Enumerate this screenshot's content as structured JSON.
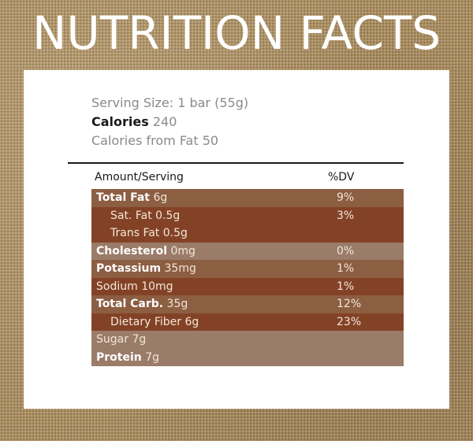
{
  "header": {
    "title": "NUTRITION FACTS"
  },
  "label": {
    "serving_size": "Serving Size: 1 bar (55g)",
    "calories_label": "Calories",
    "calories_value": "240",
    "calories_from_fat": "Calories from Fat 50",
    "amount_per_serving": "Amount/Serving",
    "dv_header": "%DV"
  },
  "nutrients": [
    {
      "label": "Total Fat",
      "amount": "6g",
      "dv": "9%",
      "bold": true,
      "indent": 0,
      "shade": "mid"
    },
    {
      "label": "Sat. Fat",
      "amount": "0.5g",
      "dv": "3%",
      "bold": false,
      "indent": 1,
      "shade": "dark"
    },
    {
      "label": "Trans Fat",
      "amount": "0.5g",
      "dv": "",
      "bold": false,
      "indent": 1,
      "shade": "dark"
    },
    {
      "label": "Cholesterol",
      "amount": "0mg",
      "dv": "0%",
      "bold": true,
      "indent": 0,
      "shade": "light"
    },
    {
      "label": "Potassium",
      "amount": "35mg",
      "dv": "1%",
      "bold": true,
      "indent": 0,
      "shade": "mid"
    },
    {
      "label": "Sodium",
      "amount": "10mg",
      "dv": "1%",
      "bold": false,
      "indent": 0,
      "shade": "dark"
    },
    {
      "label": "Total Carb.",
      "amount": "35g",
      "dv": "12%",
      "bold": true,
      "indent": 0,
      "shade": "mid"
    },
    {
      "label": "Dietary Fiber",
      "amount": "6g",
      "dv": "23%",
      "bold": false,
      "indent": 1,
      "shade": "dark"
    },
    {
      "label": "Sugar",
      "amount": "7g",
      "dv": "",
      "bold": false,
      "indent": 0,
      "shade": "light"
    },
    {
      "label": "Protein",
      "amount": "7g",
      "dv": "",
      "bold": true,
      "indent": 0,
      "shade": "light"
    }
  ],
  "colors": {
    "burlap": "#b39464",
    "row_dark": "#834226",
    "row_mid": "#8c5e42",
    "row_light": "#9a7c68"
  }
}
